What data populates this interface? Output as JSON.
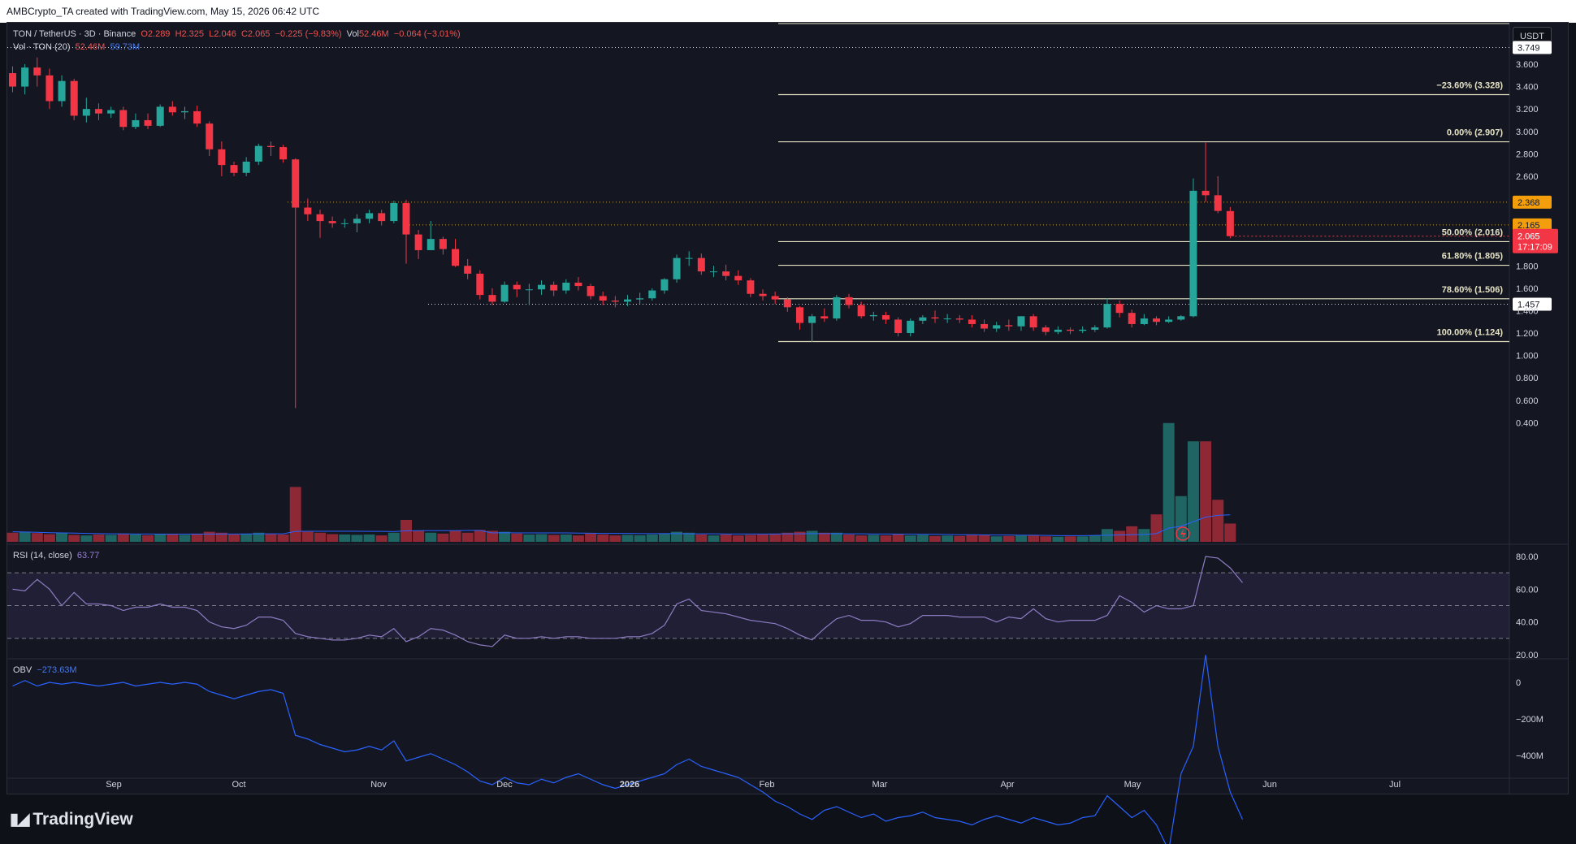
{
  "header": {
    "caption": "AMBCrypto_TA created with TradingView.com, May 15, 2026 06:42 UTC"
  },
  "legend": {
    "symbol": "TON / TetherUS · 3D · Binance",
    "open": "O2.289",
    "high": "H2.325",
    "low": "L2.046",
    "close": "C2.065",
    "change": "−0.225 (−9.83%)",
    "vol_label": "Vol",
    "vol_value": "52.46M",
    "vol_change": "−0.064 (−3.01%)",
    "vol_ma_label": "Vol · TON (20)",
    "vol_ma_value1": "52.46M",
    "vol_ma_value2": "59.73M"
  },
  "currency_label": "USDT",
  "brand": {
    "logo_text": "TradingView"
  },
  "colors": {
    "up": "#26a69a",
    "down": "#f23645",
    "fib": "#e6e2c3",
    "rsi": "#8e7cc3",
    "obv": "#2962ff",
    "background": "#141722",
    "current_price": "#f23645",
    "level_label": "#f59e0b"
  },
  "chart_data": {
    "type": "candlestick",
    "price_axis": {
      "ylim": [
        0.3,
        3.9
      ],
      "ticks": [
        "3.600",
        "3.400",
        "3.200",
        "3.000",
        "2.800",
        "2.600",
        "1.800",
        "1.600",
        "1.400",
        "1.200",
        "1.000",
        "0.800",
        "0.600",
        "0.400"
      ]
    },
    "time_axis": {
      "labels": [
        "Sep",
        "Oct",
        "Nov",
        "Dec",
        "2026",
        "Feb",
        "Mar",
        "Apr",
        "May",
        "Jun",
        "Jul"
      ]
    },
    "candles": [
      [
        3.52,
        3.4,
        3.58,
        3.35
      ],
      [
        3.4,
        3.57,
        3.6,
        3.33
      ],
      [
        3.57,
        3.5,
        3.66,
        3.4
      ],
      [
        3.5,
        3.27,
        3.56,
        3.2
      ],
      [
        3.27,
        3.45,
        3.5,
        3.22
      ],
      [
        3.45,
        3.14,
        3.47,
        3.1
      ],
      [
        3.14,
        3.2,
        3.3,
        3.08
      ],
      [
        3.2,
        3.16,
        3.25,
        3.1
      ],
      [
        3.16,
        3.19,
        3.22,
        3.12
      ],
      [
        3.19,
        3.04,
        3.22,
        3.01
      ],
      [
        3.04,
        3.1,
        3.16,
        3.02
      ],
      [
        3.1,
        3.05,
        3.16,
        3.02
      ],
      [
        3.05,
        3.22,
        3.24,
        3.04
      ],
      [
        3.22,
        3.17,
        3.27,
        3.14
      ],
      [
        3.17,
        3.18,
        3.22,
        3.11
      ],
      [
        3.18,
        3.07,
        3.23,
        3.04
      ],
      [
        3.07,
        2.84,
        3.09,
        2.78
      ],
      [
        2.84,
        2.7,
        2.91,
        2.6
      ],
      [
        2.7,
        2.63,
        2.73,
        2.6
      ],
      [
        2.63,
        2.73,
        2.77,
        2.6
      ],
      [
        2.73,
        2.87,
        2.89,
        2.7
      ],
      [
        2.87,
        2.86,
        2.91,
        2.78
      ],
      [
        2.86,
        2.75,
        2.88,
        2.72
      ],
      [
        2.75,
        2.32,
        2.76,
        0.53
      ],
      [
        2.32,
        2.26,
        2.4,
        2.2
      ],
      [
        2.26,
        2.2,
        2.3,
        2.05
      ],
      [
        2.2,
        2.18,
        2.24,
        2.14
      ],
      [
        2.18,
        2.18,
        2.22,
        2.14
      ],
      [
        2.18,
        2.22,
        2.26,
        2.1
      ],
      [
        2.22,
        2.27,
        2.3,
        2.18
      ],
      [
        2.27,
        2.2,
        2.3,
        2.16
      ],
      [
        2.2,
        2.36,
        2.38,
        2.18
      ],
      [
        2.36,
        2.08,
        2.39,
        1.82
      ],
      [
        2.08,
        1.94,
        2.12,
        1.86
      ],
      [
        1.94,
        2.04,
        2.2,
        1.94
      ],
      [
        2.04,
        1.95,
        2.06,
        1.9
      ],
      [
        1.95,
        1.8,
        2.04,
        1.79
      ],
      [
        1.8,
        1.73,
        1.86,
        1.68
      ],
      [
        1.73,
        1.54,
        1.76,
        1.5
      ],
      [
        1.54,
        1.48,
        1.6,
        1.45
      ],
      [
        1.48,
        1.63,
        1.66,
        1.47
      ],
      [
        1.63,
        1.59,
        1.66,
        1.52
      ],
      [
        1.59,
        1.59,
        1.64,
        1.45
      ],
      [
        1.59,
        1.63,
        1.67,
        1.54
      ],
      [
        1.63,
        1.58,
        1.66,
        1.53
      ],
      [
        1.58,
        1.65,
        1.68,
        1.55
      ],
      [
        1.65,
        1.62,
        1.7,
        1.58
      ],
      [
        1.62,
        1.53,
        1.64,
        1.5
      ],
      [
        1.53,
        1.49,
        1.57,
        1.45
      ],
      [
        1.49,
        1.48,
        1.53,
        1.43
      ],
      [
        1.48,
        1.5,
        1.54,
        1.44
      ],
      [
        1.5,
        1.51,
        1.56,
        1.46
      ],
      [
        1.51,
        1.58,
        1.6,
        1.49
      ],
      [
        1.58,
        1.68,
        1.69,
        1.55
      ],
      [
        1.68,
        1.87,
        1.9,
        1.65
      ],
      [
        1.87,
        1.87,
        1.93,
        1.8
      ],
      [
        1.87,
        1.75,
        1.91,
        1.72
      ],
      [
        1.75,
        1.75,
        1.8,
        1.7
      ],
      [
        1.75,
        1.71,
        1.81,
        1.67
      ],
      [
        1.71,
        1.67,
        1.76,
        1.63
      ],
      [
        1.67,
        1.55,
        1.69,
        1.52
      ],
      [
        1.55,
        1.53,
        1.59,
        1.49
      ],
      [
        1.53,
        1.5,
        1.57,
        1.46
      ],
      [
        1.5,
        1.43,
        1.52,
        1.39
      ],
      [
        1.43,
        1.29,
        1.44,
        1.23
      ],
      [
        1.29,
        1.35,
        1.37,
        1.12
      ],
      [
        1.35,
        1.33,
        1.42,
        1.3
      ],
      [
        1.33,
        1.52,
        1.54,
        1.31
      ],
      [
        1.52,
        1.45,
        1.55,
        1.42
      ],
      [
        1.45,
        1.35,
        1.48,
        1.33
      ],
      [
        1.35,
        1.36,
        1.39,
        1.31
      ],
      [
        1.36,
        1.32,
        1.39,
        1.28
      ],
      [
        1.32,
        1.2,
        1.34,
        1.17
      ],
      [
        1.2,
        1.31,
        1.33,
        1.17
      ],
      [
        1.31,
        1.34,
        1.36,
        1.28
      ],
      [
        1.34,
        1.33,
        1.4,
        1.29
      ],
      [
        1.33,
        1.33,
        1.37,
        1.29
      ],
      [
        1.33,
        1.32,
        1.36,
        1.29
      ],
      [
        1.32,
        1.28,
        1.36,
        1.25
      ],
      [
        1.28,
        1.24,
        1.32,
        1.21
      ],
      [
        1.24,
        1.27,
        1.3,
        1.21
      ],
      [
        1.27,
        1.26,
        1.32,
        1.22
      ],
      [
        1.26,
        1.35,
        1.35,
        1.22
      ],
      [
        1.35,
        1.25,
        1.37,
        1.22
      ],
      [
        1.25,
        1.21,
        1.27,
        1.18
      ],
      [
        1.21,
        1.23,
        1.26,
        1.19
      ],
      [
        1.23,
        1.22,
        1.25,
        1.19
      ],
      [
        1.22,
        1.23,
        1.26,
        1.2
      ],
      [
        1.23,
        1.25,
        1.27,
        1.21
      ],
      [
        1.25,
        1.46,
        1.51,
        1.24
      ],
      [
        1.46,
        1.38,
        1.49,
        1.34
      ],
      [
        1.38,
        1.28,
        1.41,
        1.25
      ],
      [
        1.28,
        1.33,
        1.37,
        1.27
      ],
      [
        1.33,
        1.3,
        1.35,
        1.27
      ],
      [
        1.3,
        1.32,
        1.35,
        1.29
      ],
      [
        1.32,
        1.35,
        1.36,
        1.31
      ],
      [
        1.35,
        2.47,
        2.58,
        1.34
      ],
      [
        2.47,
        2.43,
        2.9,
        2.37
      ],
      [
        2.43,
        2.29,
        2.6,
        2.27
      ],
      [
        2.289,
        2.065,
        2.325,
        2.046
      ]
    ],
    "volume": [
      0.05,
      0.055,
      0.048,
      0.042,
      0.05,
      0.038,
      0.035,
      0.04,
      0.038,
      0.042,
      0.04,
      0.036,
      0.042,
      0.04,
      0.038,
      0.045,
      0.055,
      0.05,
      0.04,
      0.045,
      0.05,
      0.042,
      0.04,
      0.3,
      0.055,
      0.05,
      0.042,
      0.04,
      0.038,
      0.04,
      0.035,
      0.05,
      0.12,
      0.06,
      0.05,
      0.045,
      0.06,
      0.05,
      0.065,
      0.06,
      0.055,
      0.045,
      0.04,
      0.042,
      0.038,
      0.04,
      0.035,
      0.045,
      0.04,
      0.035,
      0.038,
      0.036,
      0.04,
      0.045,
      0.055,
      0.05,
      0.04,
      0.035,
      0.04,
      0.035,
      0.038,
      0.04,
      0.045,
      0.05,
      0.055,
      0.06,
      0.05,
      0.05,
      0.04,
      0.035,
      0.038,
      0.035,
      0.042,
      0.035,
      0.038,
      0.032,
      0.034,
      0.032,
      0.04,
      0.036,
      0.03,
      0.032,
      0.035,
      0.036,
      0.03,
      0.028,
      0.03,
      0.03,
      0.034,
      0.07,
      0.06,
      0.085,
      0.07,
      0.15,
      0.65,
      0.25,
      0.55,
      0.55,
      0.23,
      0.1
    ],
    "volume_ma": [
      0.055,
      0.054,
      0.052,
      0.05,
      0.049,
      0.048,
      0.046,
      0.045,
      0.044,
      0.044,
      0.043,
      0.043,
      0.042,
      0.042,
      0.042,
      0.042,
      0.042,
      0.043,
      0.043,
      0.043,
      0.044,
      0.044,
      0.044,
      0.057,
      0.058,
      0.058,
      0.058,
      0.058,
      0.058,
      0.057,
      0.057,
      0.056,
      0.06,
      0.061,
      0.061,
      0.061,
      0.061,
      0.062,
      0.062,
      0.049,
      0.05,
      0.049,
      0.049,
      0.049,
      0.049,
      0.049,
      0.048,
      0.047,
      0.046,
      0.046,
      0.046,
      0.045,
      0.045,
      0.045,
      0.045,
      0.044,
      0.044,
      0.044,
      0.043,
      0.043,
      0.043,
      0.043,
      0.043,
      0.044,
      0.044,
      0.045,
      0.045,
      0.045,
      0.044,
      0.044,
      0.043,
      0.043,
      0.042,
      0.042,
      0.041,
      0.041,
      0.04,
      0.039,
      0.039,
      0.038,
      0.037,
      0.037,
      0.036,
      0.036,
      0.035,
      0.034,
      0.034,
      0.034,
      0.035,
      0.036,
      0.037,
      0.039,
      0.04,
      0.045,
      0.075,
      0.085,
      0.11,
      0.135,
      0.145,
      0.148
    ],
    "rsi": [
      60,
      59,
      66,
      60,
      50,
      58,
      51,
      51,
      50,
      47,
      49,
      49,
      51,
      49,
      49,
      47,
      40,
      37,
      36,
      38,
      43,
      43,
      41,
      33,
      31,
      30,
      29,
      29,
      30,
      32,
      31,
      36,
      28,
      31,
      36,
      35,
      32,
      28,
      26,
      25,
      32,
      30,
      30,
      31,
      30,
      31,
      31,
      30,
      30,
      30,
      31,
      31,
      33,
      38,
      51,
      54,
      47,
      46,
      45,
      43,
      41,
      40,
      39,
      36,
      32,
      29,
      36,
      42,
      44,
      41,
      41,
      40,
      37,
      39,
      44,
      44,
      44,
      43,
      43,
      43,
      40,
      43,
      42,
      48,
      42,
      40,
      41,
      41,
      41,
      44,
      56,
      52,
      46,
      50,
      48,
      48,
      50,
      80,
      79,
      73,
      64
    ],
    "rsi_axis": {
      "ticks": [
        "80.00",
        "60.00",
        "40.00",
        "20.00"
      ]
    },
    "rsi_levels": [
      70,
      50,
      30
    ],
    "obv": [
      -0.02,
      0.01,
      -0.02,
      0.0,
      -0.01,
      0.0,
      -0.01,
      -0.02,
      -0.01,
      0.0,
      -0.02,
      -0.01,
      0.0,
      -0.01,
      0.0,
      -0.01,
      -0.05,
      -0.07,
      -0.09,
      -0.07,
      -0.05,
      -0.04,
      -0.06,
      -0.29,
      -0.31,
      -0.34,
      -0.36,
      -0.38,
      -0.37,
      -0.35,
      -0.37,
      -0.32,
      -0.43,
      -0.41,
      -0.39,
      -0.42,
      -0.45,
      -0.49,
      -0.54,
      -0.56,
      -0.52,
      -0.55,
      -0.56,
      -0.53,
      -0.55,
      -0.52,
      -0.5,
      -0.53,
      -0.56,
      -0.58,
      -0.56,
      -0.54,
      -0.52,
      -0.5,
      -0.45,
      -0.42,
      -0.46,
      -0.48,
      -0.5,
      -0.52,
      -0.56,
      -0.6,
      -0.65,
      -0.68,
      -0.72,
      -0.75,
      -0.7,
      -0.68,
      -0.71,
      -0.74,
      -0.72,
      -0.76,
      -0.74,
      -0.73,
      -0.71,
      -0.74,
      -0.75,
      -0.76,
      -0.78,
      -0.75,
      -0.73,
      -0.75,
      -0.77,
      -0.74,
      -0.76,
      -0.78,
      -0.77,
      -0.74,
      -0.73,
      -0.62,
      -0.68,
      -0.74,
      -0.7,
      -0.78,
      -0.92,
      -0.5,
      -0.35,
      0.15,
      -0.35,
      -0.6,
      -0.75
    ],
    "obv_axis": {
      "ticks": [
        "0",
        "−200M",
        "−400M"
      ]
    },
    "fib_levels": [
      {
        "label": "−23.60% (3.328)",
        "price": 3.328
      },
      {
        "label": "0.00% (2.907)",
        "price": 2.907
      },
      {
        "label": "50.00% (2.016)",
        "price": 2.016
      },
      {
        "label": "61.80% (1.805)",
        "price": 1.805
      },
      {
        "label": "78.60% (1.506)",
        "price": 1.506
      },
      {
        "label": "100.00% (1.124)",
        "price": 1.124
      }
    ],
    "horizontal_levels": [
      {
        "price": 3.749,
        "label": "3.749",
        "style": "box-white"
      },
      {
        "price": 2.368,
        "label": "2.368",
        "style": "box-orange"
      },
      {
        "price": 2.165,
        "label": "2.165",
        "style": "box-orange"
      },
      {
        "price": 1.457,
        "label": "1.457",
        "style": "box-white"
      }
    ],
    "current_price": {
      "price": "2.065",
      "countdown": "17:17:09"
    },
    "rsi_label": "RSI (14, close)",
    "rsi_value": "63.77",
    "obv_label": "OBV",
    "obv_value": "−273.63M"
  }
}
